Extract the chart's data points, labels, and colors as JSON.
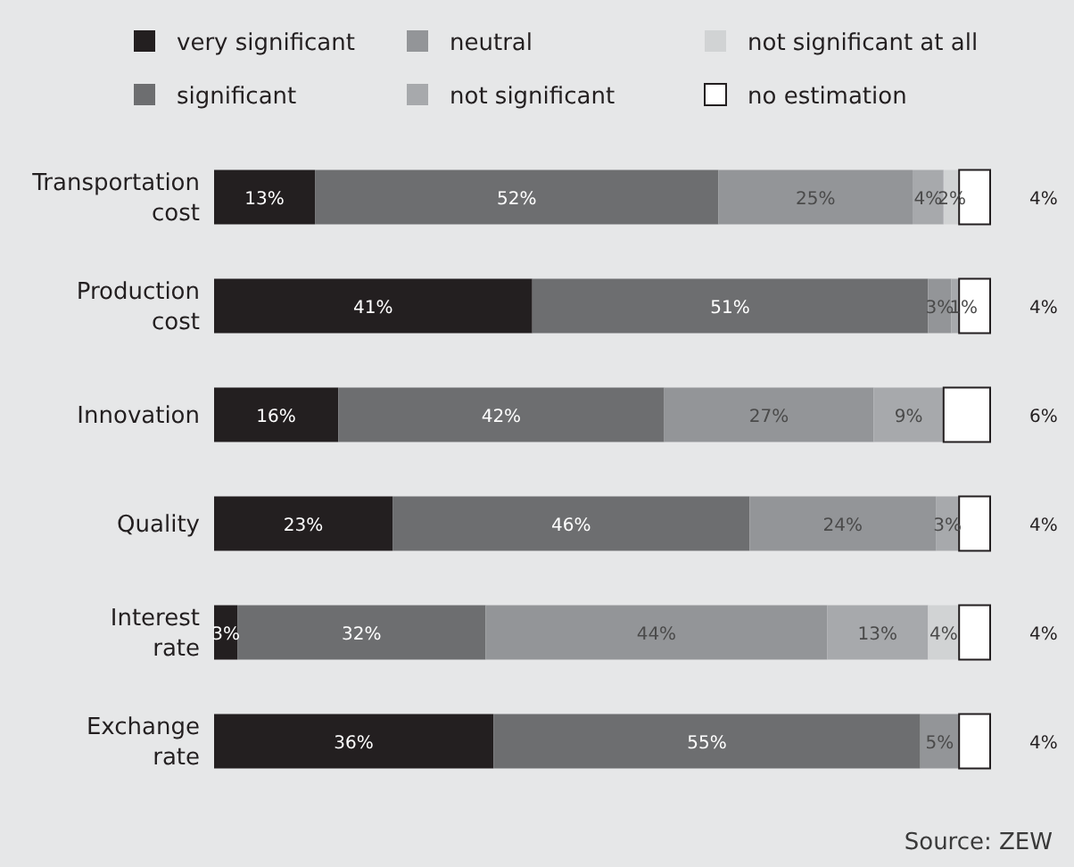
{
  "chart_data": {
    "type": "bar",
    "orientation": "horizontal",
    "stacked": true,
    "legend": "top",
    "tick_labels": "y",
    "xlim": [
      0,
      100
    ],
    "categories": [
      "Transportation cost",
      "Production cost",
      "Innovation",
      "Quality",
      "Interest rate",
      "Exchange rate"
    ],
    "series": [
      {
        "name": "very significant",
        "color": "#231f20",
        "values": [
          13,
          41,
          16,
          23,
          3,
          36
        ],
        "value_labels": [
          "13%",
          "41%",
          "16%",
          "23%",
          "3%",
          "36%"
        ]
      },
      {
        "name": "significant",
        "color": "#6d6e70",
        "values": [
          52,
          51,
          42,
          46,
          32,
          55
        ],
        "value_labels": [
          "52%",
          "51%",
          "42%",
          "46%",
          "32%",
          "55%"
        ]
      },
      {
        "name": "neutral",
        "color": "#939598",
        "values": [
          25,
          3,
          27,
          24,
          44,
          5
        ],
        "value_labels": [
          "25%",
          "3%",
          "27%",
          "24%",
          "44%",
          "5%"
        ]
      },
      {
        "name": "not significant",
        "color": "#a7a9ac",
        "values": [
          4,
          1,
          9,
          3,
          13,
          0
        ],
        "value_labels": [
          "4%",
          "1%",
          "9%",
          "3%",
          "13%",
          null
        ]
      },
      {
        "name": "not significant at all",
        "color": "#d1d3d4",
        "values": [
          2,
          0,
          0,
          0,
          4,
          0
        ],
        "value_labels": [
          "2%",
          null,
          null,
          null,
          "4%",
          null
        ]
      },
      {
        "name": "no estimation",
        "color": "#ffffff",
        "values": [
          4,
          4,
          6,
          4,
          4,
          4
        ],
        "value_labels": [
          "4%",
          "4%",
          "6%",
          "4%",
          "4%",
          "4%"
        ]
      }
    ],
    "annotations": [
      "Source: ZEW"
    ]
  }
}
